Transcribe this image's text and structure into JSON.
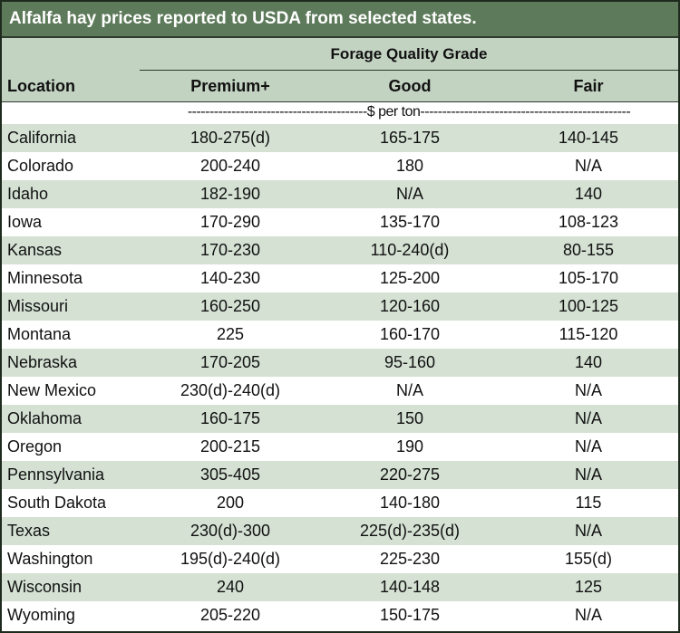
{
  "chart_data": {
    "type": "table",
    "title": "Alfalfa hay prices reported to USDA from selected states.",
    "group_header": "Forage Quality Grade",
    "row_header": "Location",
    "columns": [
      "Premium+",
      "Good",
      "Fair"
    ],
    "units": "-----------------------------------------$ per ton------------------------------------------------",
    "rows": [
      {
        "location": "California",
        "values": [
          "180-275(d)",
          "165-175",
          "140-145"
        ]
      },
      {
        "location": "Colorado",
        "values": [
          "200-240",
          "180",
          "N/A"
        ]
      },
      {
        "location": "Idaho",
        "values": [
          "182-190",
          "N/A",
          "140"
        ]
      },
      {
        "location": "Iowa",
        "values": [
          "170-290",
          "135-170",
          "108-123"
        ]
      },
      {
        "location": "Kansas",
        "values": [
          "170-230",
          "110-240(d)",
          "80-155"
        ]
      },
      {
        "location": "Minnesota",
        "values": [
          "140-230",
          "125-200",
          "105-170"
        ]
      },
      {
        "location": "Missouri",
        "values": [
          "160-250",
          "120-160",
          "100-125"
        ]
      },
      {
        "location": "Montana",
        "values": [
          "225",
          "160-170",
          "115-120"
        ]
      },
      {
        "location": "Nebraska",
        "values": [
          "170-205",
          "95-160",
          "140"
        ]
      },
      {
        "location": "New Mexico",
        "values": [
          "230(d)-240(d)",
          "N/A",
          "N/A"
        ]
      },
      {
        "location": "Oklahoma",
        "values": [
          "160-175",
          "150",
          "N/A"
        ]
      },
      {
        "location": "Oregon",
        "values": [
          "200-215",
          "190",
          "N/A"
        ]
      },
      {
        "location": "Pennsylvania",
        "values": [
          "305-405",
          "220-275",
          "N/A"
        ]
      },
      {
        "location": "South Dakota",
        "values": [
          "200",
          "140-180",
          "115"
        ]
      },
      {
        "location": "Texas",
        "values": [
          "230(d)-300",
          "225(d)-235(d)",
          "N/A"
        ]
      },
      {
        "location": "Washington",
        "values": [
          "195(d)-240(d)",
          "225-230",
          "155(d)"
        ]
      },
      {
        "location": "Wisconsin",
        "values": [
          "240",
          "140-148",
          "125"
        ]
      },
      {
        "location": "Wyoming",
        "values": [
          "205-220",
          "150-175",
          "N/A"
        ]
      }
    ]
  }
}
